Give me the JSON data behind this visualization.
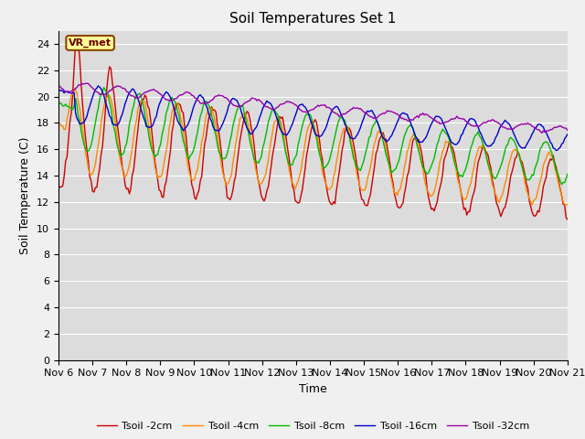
{
  "title": "Soil Temperatures Set 1",
  "xlabel": "Time",
  "ylabel": "Soil Temperature (C)",
  "ylim": [
    0,
    25
  ],
  "yticks": [
    0,
    2,
    4,
    6,
    8,
    10,
    12,
    14,
    16,
    18,
    20,
    22,
    24
  ],
  "x_labels": [
    "Nov 6",
    "Nov 7",
    "Nov 8",
    "Nov 9",
    "Nov 10",
    "Nov 11",
    "Nov 12",
    "Nov 13",
    "Nov 14",
    "Nov 15",
    "Nov 16",
    "Nov 17",
    "Nov 18",
    "Nov 19",
    "Nov 20",
    "Nov 21"
  ],
  "bg_color": "#dcdcdc",
  "fig_color": "#f0f0f0",
  "annotation_text": "VR_met",
  "annotation_box_color": "#ffff99",
  "annotation_border_color": "#8b4500",
  "legend": [
    "Tsoil -2cm",
    "Tsoil -4cm",
    "Tsoil -8cm",
    "Tsoil -16cm",
    "Tsoil -32cm"
  ],
  "line_colors": [
    "#cc0000",
    "#ff8800",
    "#00bb00",
    "#0000cc",
    "#9900aa"
  ],
  "title_fontsize": 11,
  "axis_fontsize": 9,
  "tick_fontsize": 8
}
